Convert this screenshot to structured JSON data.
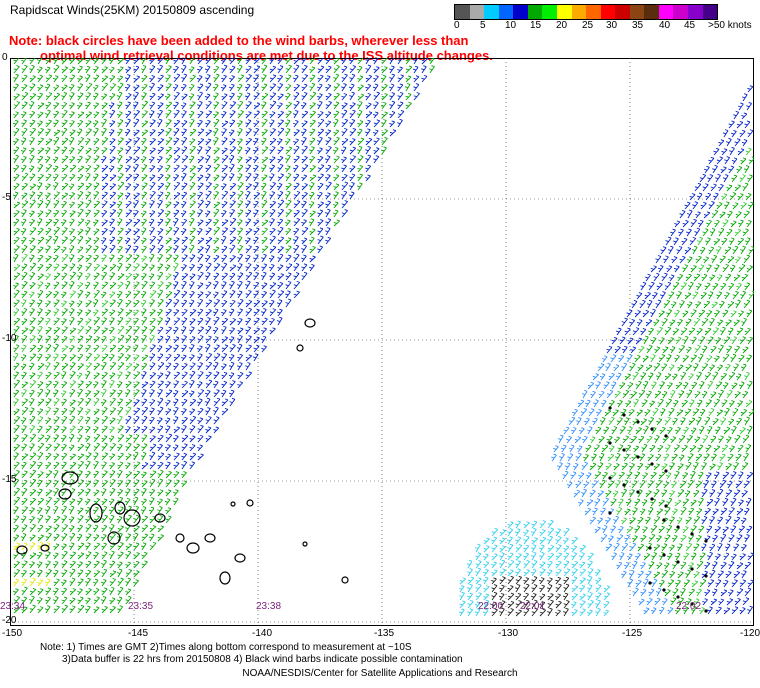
{
  "title": "Rapidscat Winds(25KM) 20150809 ascending",
  "note": {
    "line1": "Note: black circles have been added to the wind barbs, wherever less than",
    "line2": "optimal wind retrieval conditions are met due to the ISS altitude changes."
  },
  "legend": {
    "labels": [
      "0",
      "5",
      "10",
      "15",
      "20",
      "25",
      "30",
      "35",
      "40",
      "45",
      ">50 knots"
    ],
    "colors": [
      "#555555",
      "#aaaaaa",
      "#00ccff",
      "#0066ff",
      "#0000cc",
      "#00aa00",
      "#00ee00",
      "#ffff00",
      "#ffaa00",
      "#ff6600",
      "#ff0000",
      "#cc0000",
      "#8b4513",
      "#5a2d0c",
      "#ff00ff",
      "#cc00cc",
      "#8800cc",
      "#440088"
    ]
  },
  "map": {
    "lat_labels": [
      "0",
      "-5",
      "-10",
      "-15",
      "-20"
    ],
    "lon_labels": [
      "-150",
      "-145",
      "-140",
      "-135",
      "-130",
      "-125",
      "-120"
    ],
    "time_labels": [
      "23:34",
      "23:35",
      "23:38",
      "22:00",
      "22:01",
      "22:02"
    ],
    "swath_colors": {
      "green": "#00a800",
      "bright_green": "#33cc33",
      "blue": "#0022cc",
      "light_blue": "#2f8fff",
      "cyan": "#2fd0ee",
      "yellow": "#e6e600",
      "black": "#000000"
    }
  },
  "footnote": {
    "line1": "Note: 1) Times are GMT 2)Times along bottom correspond to measurement at ~10S",
    "line2": "3)Data buffer is 22 hrs from 20150808 4) Black wind barbs indicate possible contamination"
  },
  "credit": "NOAA/NESDIS/Center for Satellite Applications and Research"
}
